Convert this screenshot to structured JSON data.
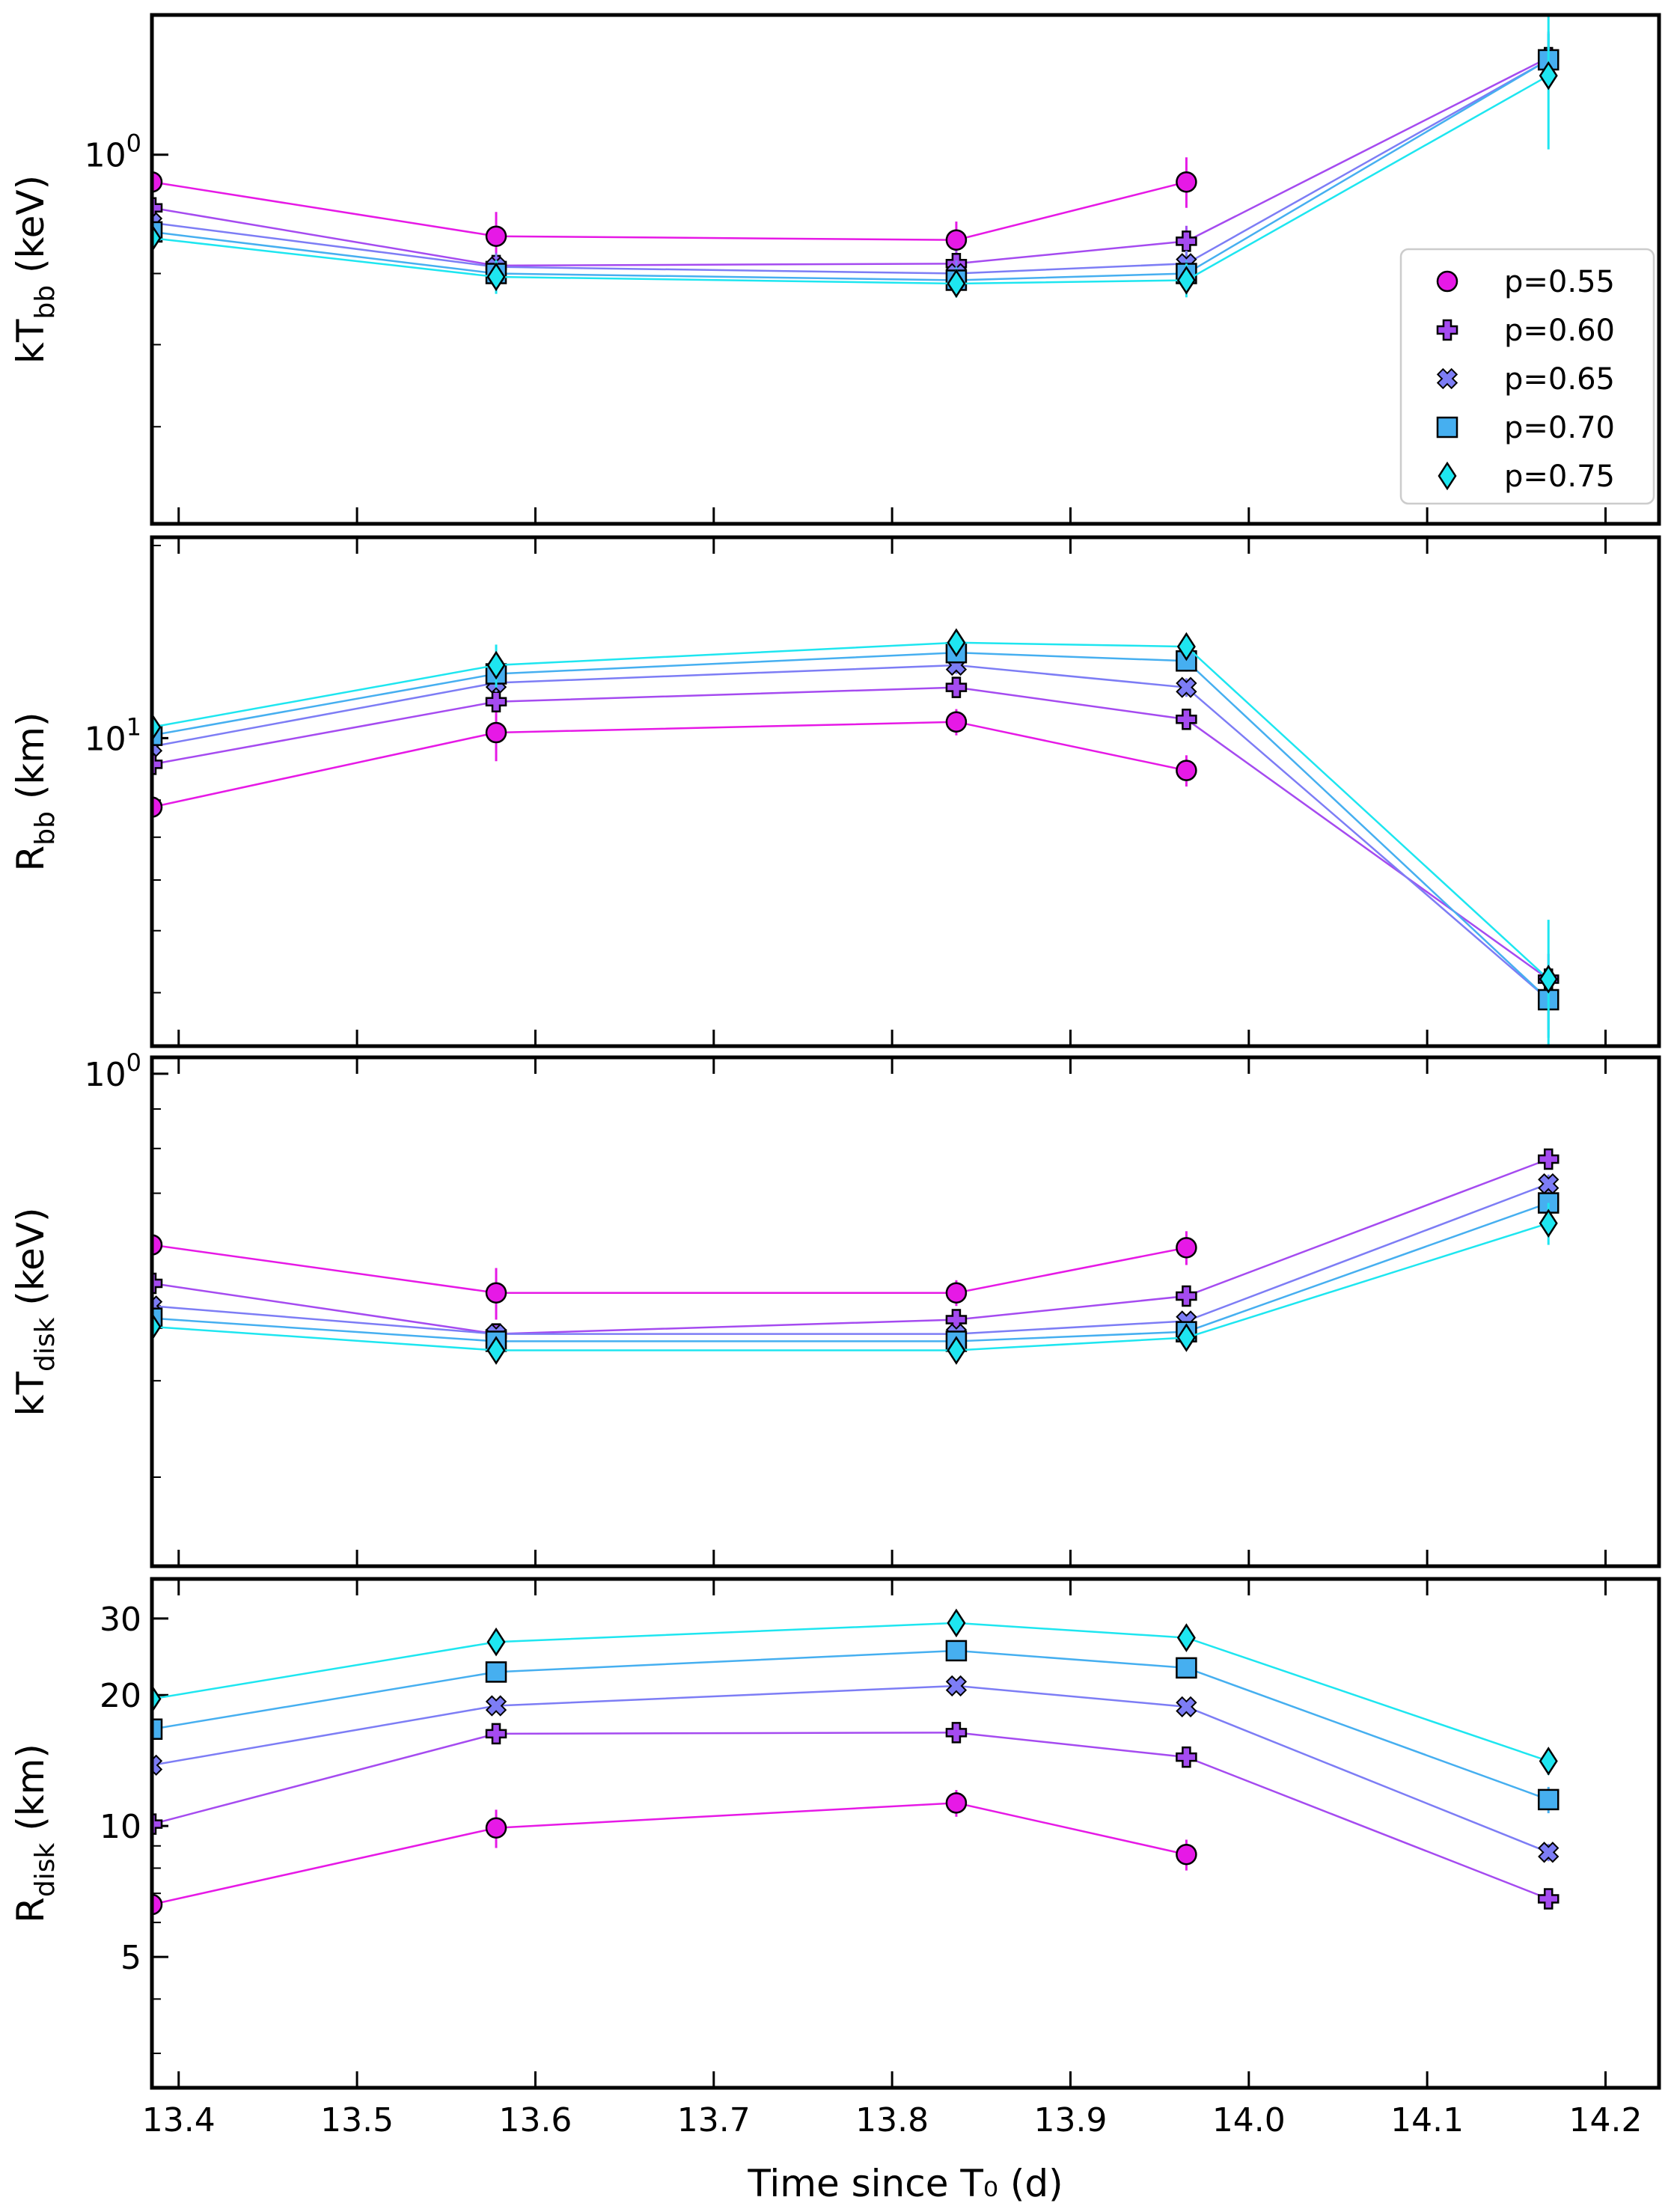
{
  "chart_data": [
    {
      "type": "line",
      "panel": "top",
      "yscale": "log",
      "ylabel_main": "kT",
      "ylabel_sub": "bb",
      "ylabel_unit": " (keV)",
      "ylim": [
        0.5,
        1.3
      ],
      "yticks": [
        {
          "value": 1.0,
          "base": "10",
          "exp": "0"
        }
      ],
      "x": [
        13.385,
        13.578,
        13.836,
        13.965,
        14.168
      ],
      "series": [
        {
          "name": "p=0.55",
          "values": [
            0.95,
            0.858,
            0.852,
            0.95,
            null
          ],
          "err": [
            0.03,
            0.04,
            0.03,
            0.045,
            null
          ]
        },
        {
          "name": "p=0.60",
          "values": [
            0.905,
            0.812,
            0.815,
            0.85,
            1.2
          ],
          "err": [
            0.02,
            0.02,
            0.02,
            0.025,
            0.06
          ]
        },
        {
          "name": "p=0.65",
          "values": [
            0.88,
            0.81,
            0.8,
            0.815,
            1.195
          ],
          "err": [
            0.02,
            0.02,
            0.02,
            0.02,
            0.06
          ]
        },
        {
          "name": "p=0.70",
          "values": [
            0.865,
            0.8,
            0.79,
            0.8,
            1.195
          ],
          "err": [
            0.02,
            0.02,
            0.02,
            0.02,
            0.06
          ]
        },
        {
          "name": "p=0.75",
          "values": [
            0.855,
            0.795,
            0.785,
            0.79,
            1.16
          ],
          "err": [
            0.02,
            0.025,
            0.02,
            0.025,
            0.15
          ]
        }
      ]
    },
    {
      "type": "line",
      "panel": "second",
      "yscale": "log",
      "ylabel_main": "R",
      "ylabel_sub": "bb",
      "ylabel_unit": " (km)",
      "ylim": [
        3.3,
        20.6
      ],
      "yticks": [
        {
          "value": 10,
          "base": "10",
          "exp": "1"
        }
      ],
      "x": [
        13.385,
        13.578,
        13.836,
        13.965,
        14.168
      ],
      "series": [
        {
          "name": "p=0.55",
          "values": [
            7.8,
            10.2,
            10.6,
            8.9,
            null
          ],
          "err": [
            0.2,
            1.0,
            0.5,
            0.5,
            null
          ]
        },
        {
          "name": "p=0.60",
          "values": [
            9.1,
            11.4,
            12.0,
            10.7,
            4.2
          ],
          "err": [
            0.3,
            0.4,
            0.4,
            0.4,
            0.4
          ]
        },
        {
          "name": "p=0.65",
          "values": [
            9.7,
            12.2,
            13.0,
            12.0,
            3.9
          ],
          "err": [
            0.3,
            0.4,
            0.4,
            0.4,
            0.4
          ]
        },
        {
          "name": "p=0.70",
          "values": [
            10.1,
            12.6,
            13.6,
            13.2,
            3.9
          ],
          "err": [
            0.3,
            0.5,
            0.5,
            0.5,
            0.5
          ]
        },
        {
          "name": "p=0.75",
          "values": [
            10.4,
            13.0,
            14.1,
            13.9,
            4.2
          ],
          "err": [
            0.3,
            1.0,
            0.6,
            0.6,
            1.0
          ]
        }
      ]
    },
    {
      "type": "line",
      "panel": "third",
      "yscale": "log",
      "ylabel_main": "kT",
      "ylabel_sub": "disk",
      "ylabel_unit": " (keV)",
      "ylim": [
        0.23,
        1.05
      ],
      "yticks": [
        {
          "value": 1.0,
          "base": "10",
          "exp": "0"
        }
      ],
      "x": [
        13.385,
        13.578,
        13.836,
        13.965,
        14.168
      ],
      "series": [
        {
          "name": "p=0.55",
          "values": [
            0.6,
            0.52,
            0.52,
            0.595,
            null
          ],
          "err": [
            0.01,
            0.04,
            0.02,
            0.03,
            null
          ]
        },
        {
          "name": "p=0.60",
          "values": [
            0.535,
            0.46,
            0.48,
            0.515,
            0.775
          ],
          "err": [
            0.01,
            0.01,
            0.01,
            0.01,
            0.02
          ]
        },
        {
          "name": "p=0.65",
          "values": [
            0.5,
            0.46,
            0.46,
            0.478,
            0.72
          ],
          "err": [
            0.01,
            0.01,
            0.01,
            0.01,
            0.02
          ]
        },
        {
          "name": "p=0.70",
          "values": [
            0.482,
            0.45,
            0.45,
            0.463,
            0.68
          ],
          "err": [
            0.01,
            0.01,
            0.01,
            0.01,
            0.02
          ]
        },
        {
          "name": "p=0.75",
          "values": [
            0.47,
            0.438,
            0.438,
            0.455,
            0.64
          ],
          "err": [
            0.01,
            0.01,
            0.01,
            0.01,
            0.04
          ]
        }
      ]
    },
    {
      "type": "line",
      "panel": "bottom",
      "yscale": "log",
      "ylabel_main": "R",
      "ylabel_sub": "disk",
      "ylabel_unit": " (km)",
      "ylim": [
        2.5,
        37
      ],
      "yticks": [
        {
          "value": 5,
          "label": "5"
        },
        {
          "value": 10,
          "label": "10"
        },
        {
          "value": 20,
          "label": "20"
        },
        {
          "value": 30,
          "label": "30"
        }
      ],
      "x": [
        13.385,
        13.578,
        13.836,
        13.965,
        14.168
      ],
      "xlim": [
        13.385,
        14.23
      ],
      "xticks": [
        13.4,
        13.5,
        13.6,
        13.7,
        13.8,
        13.9,
        14.0,
        14.1,
        14.2
      ],
      "xlabel": "Time since  T₀ (d)",
      "series": [
        {
          "name": "p=0.55",
          "values": [
            6.6,
            9.9,
            11.3,
            8.6,
            null
          ],
          "err": [
            0.3,
            1.0,
            0.8,
            0.7,
            null
          ]
        },
        {
          "name": "p=0.60",
          "values": [
            10.1,
            16.3,
            16.4,
            14.4,
            6.8
          ],
          "err": [
            0.3,
            0.6,
            0.5,
            0.5,
            0.3
          ]
        },
        {
          "name": "p=0.65",
          "values": [
            13.8,
            18.9,
            21.0,
            18.8,
            8.7
          ],
          "err": [
            0.4,
            0.6,
            0.6,
            0.6,
            0.4
          ]
        },
        {
          "name": "p=0.70",
          "values": [
            16.7,
            22.6,
            25.3,
            23.1,
            11.5
          ],
          "err": [
            0.5,
            0.7,
            0.7,
            0.7,
            0.8
          ]
        },
        {
          "name": "p=0.75",
          "values": [
            19.6,
            26.5,
            29.3,
            27.1,
            14.1
          ],
          "err": [
            0.5,
            0.8,
            0.8,
            0.8,
            1.0
          ]
        }
      ]
    }
  ],
  "legend": {
    "location": "upper-right of top panel",
    "entries": [
      {
        "label": "p=0.55",
        "marker": "circle",
        "color": "#e619e6"
      },
      {
        "label": "p=0.60",
        "marker": "plus",
        "color": "#a54bf0"
      },
      {
        "label": "p=0.65",
        "marker": "x",
        "color": "#7d7df5"
      },
      {
        "label": "p=0.70",
        "marker": "square",
        "color": "#46aff0"
      },
      {
        "label": "p=0.75",
        "marker": "diamond",
        "color": "#1ee6f0"
      }
    ]
  }
}
